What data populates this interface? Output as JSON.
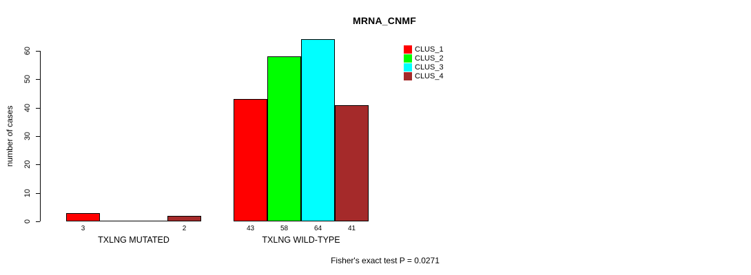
{
  "chart_data": {
    "type": "bar",
    "title": "MRNA_CNMF",
    "ylabel": "number of cases",
    "xlabel": "",
    "ylim": [
      0,
      60
    ],
    "yticks": [
      0,
      10,
      20,
      30,
      40,
      50,
      60
    ],
    "grid": false,
    "legend_position": "top-right",
    "series": [
      {
        "name": "CLUS_1",
        "color": "#ff0000"
      },
      {
        "name": "CLUS_2",
        "color": "#00ff00"
      },
      {
        "name": "CLUS_3",
        "color": "#00ffff"
      },
      {
        "name": "CLUS_4",
        "color": "#a52a2a"
      }
    ],
    "categories": [
      "TXLNG MUTATED",
      "TXLNG WILD-TYPE"
    ],
    "groups": [
      {
        "label": "TXLNG MUTATED",
        "values": [
          3,
          0,
          0,
          2
        ],
        "bar_labels": [
          "3",
          "",
          "",
          "2"
        ]
      },
      {
        "label": "TXLNG WILD-TYPE",
        "values": [
          43,
          58,
          64,
          41
        ],
        "bar_labels": [
          "43",
          "58",
          "64",
          "41"
        ]
      }
    ],
    "annotation": "Fisher's exact test P = 0.0271"
  }
}
